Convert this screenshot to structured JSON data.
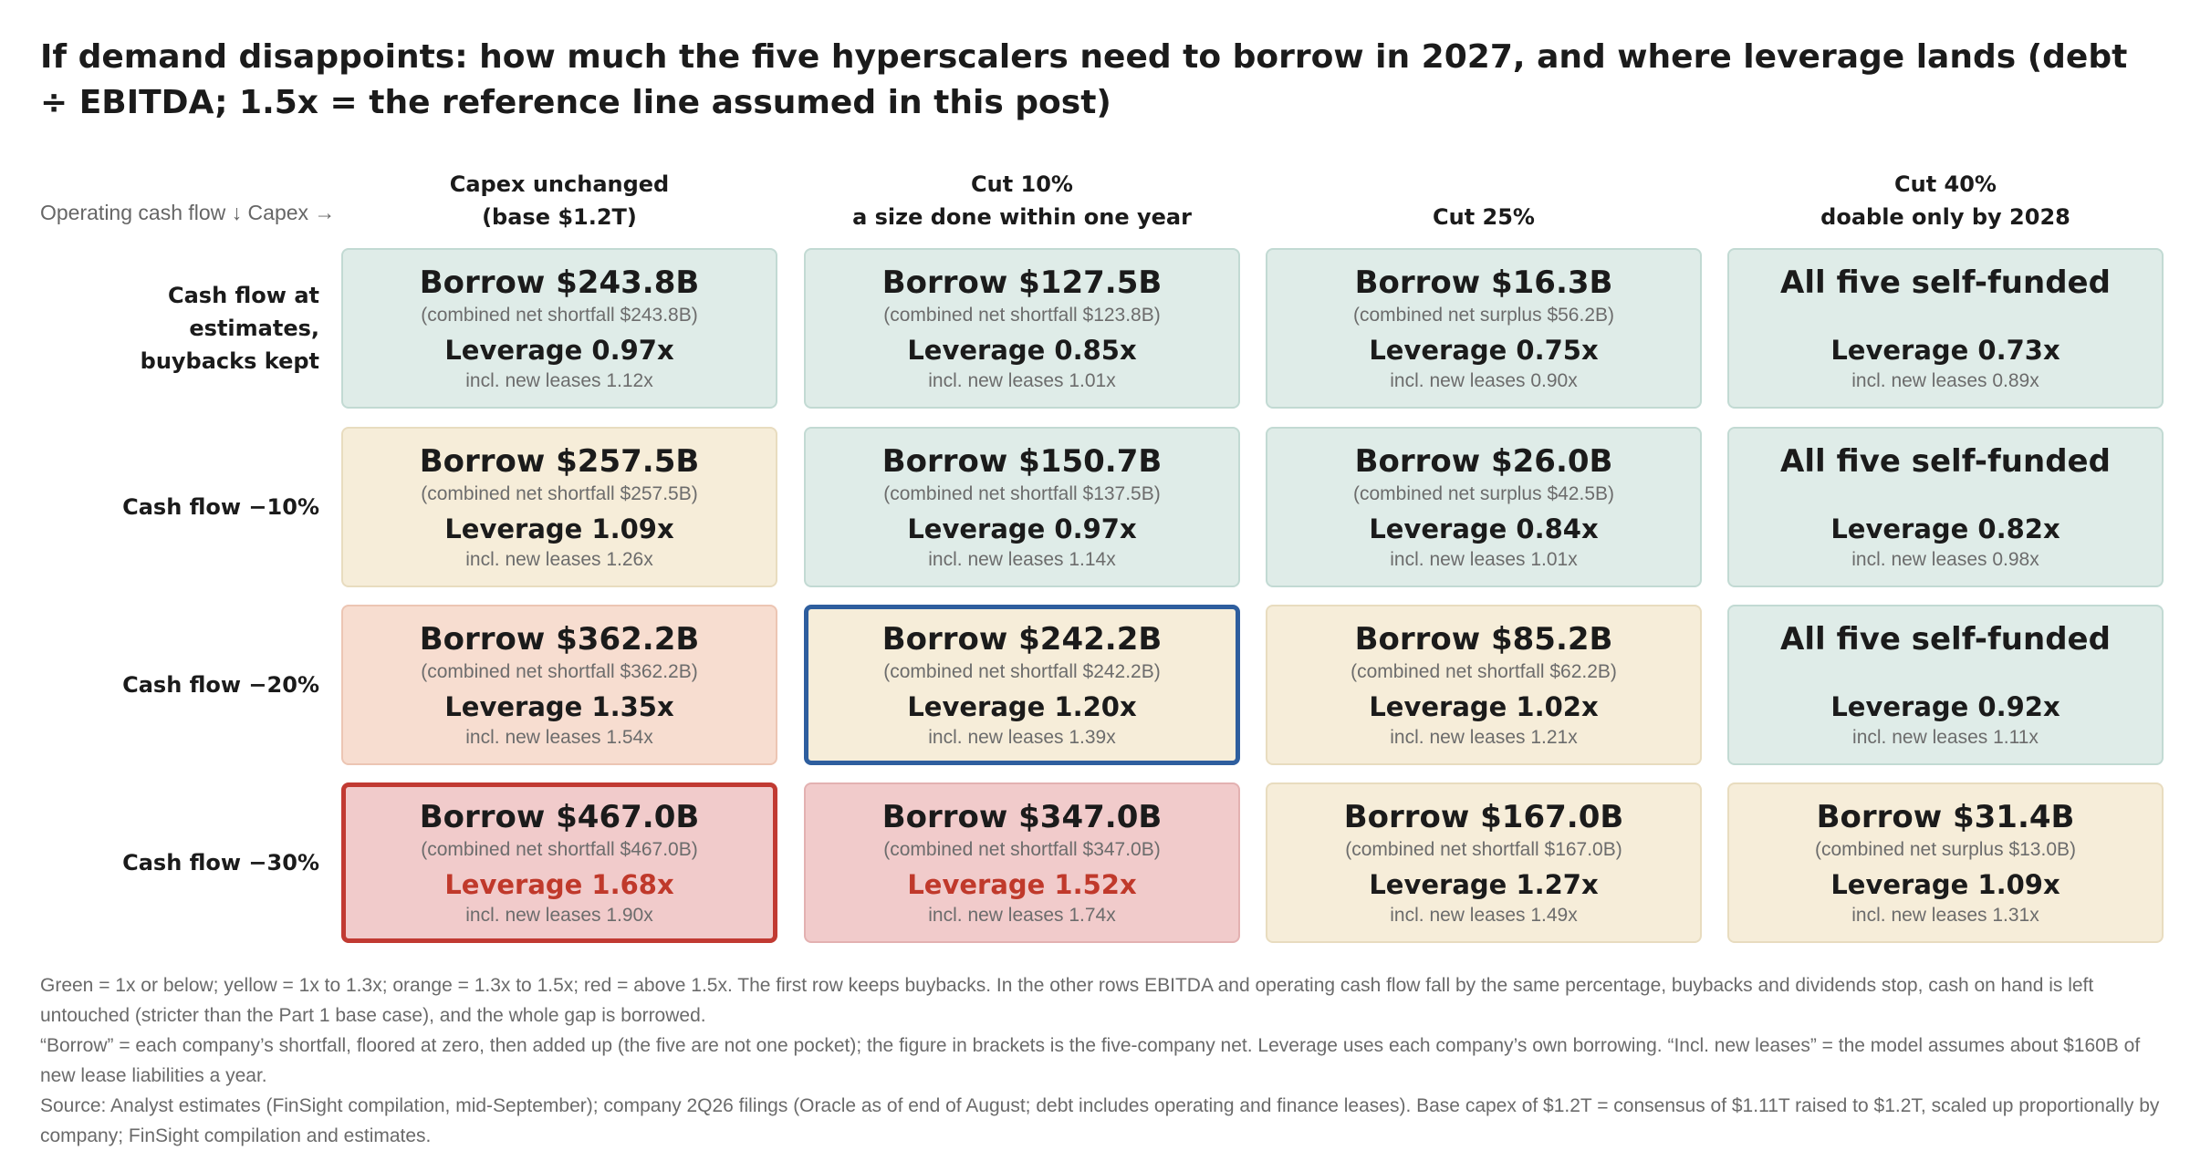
{
  "title": "If demand disappoints: how much the five hyperscalers need to borrow in 2027, and where leverage lands (debt ÷ EBITDA; 1.5x = the reference line assumed in this post)",
  "corner_label": "Operating cash flow ↓   Capex →",
  "chart_data": {
    "type": "table",
    "title": "If demand disappoints: how much the five hyperscalers need to borrow in 2027, and where leverage lands (debt ÷ EBITDA; 1.5x = the reference line assumed in this post)",
    "columns": [
      {
        "line1": "Capex unchanged",
        "line2": "(base $1.2T)"
      },
      {
        "line1": "Cut 10%",
        "line2": "a size done within one year"
      },
      {
        "line1": "",
        "line2": "Cut 25%"
      },
      {
        "line1": "Cut 40%",
        "line2": "doable only by 2028"
      }
    ],
    "rows": [
      {
        "label": "Cash flow at estimates, buybacks kept",
        "label_lines": [
          "Cash flow at",
          "estimates,",
          "buybacks kept"
        ]
      },
      {
        "label": "Cash flow −10%",
        "label_lines": [
          "Cash flow −10%"
        ]
      },
      {
        "label": "Cash flow −20%",
        "label_lines": [
          "Cash flow −20%"
        ]
      },
      {
        "label": "Cash flow −30%",
        "label_lines": [
          "Cash flow −30%"
        ]
      }
    ],
    "reference_leverage": 1.5,
    "color_bands": {
      "green": "#dfece8",
      "yellow": "#f6edd9",
      "orange": "#f7ddd0",
      "red": "#f1cbcb"
    },
    "highlight_colors": {
      "blue": "#2e5e9e",
      "red": "#c13a32"
    },
    "cells": [
      [
        {
          "headline": "Borrow $243.8B",
          "borrow": 243.8,
          "net_text": "(combined net shortfall $243.8B)",
          "leverage_text": "Leverage 0.97x",
          "leverage": 0.97,
          "lease_text": "incl. new leases 1.12x",
          "lease_leverage": 1.12,
          "color": "green",
          "highlight": null
        },
        {
          "headline": "Borrow $127.5B",
          "borrow": 127.5,
          "net_text": "(combined net shortfall $123.8B)",
          "leverage_text": "Leverage 0.85x",
          "leverage": 0.85,
          "lease_text": "incl. new leases 1.01x",
          "lease_leverage": 1.01,
          "color": "green",
          "highlight": null
        },
        {
          "headline": "Borrow $16.3B",
          "borrow": 16.3,
          "net_text": "(combined net surplus $56.2B)",
          "leverage_text": "Leverage 0.75x",
          "leverage": 0.75,
          "lease_text": "incl. new leases 0.90x",
          "lease_leverage": 0.9,
          "color": "green",
          "highlight": null
        },
        {
          "headline": "All five self-funded",
          "borrow": 0,
          "net_text": "",
          "leverage_text": "Leverage 0.73x",
          "leverage": 0.73,
          "lease_text": "incl. new leases 0.89x",
          "lease_leverage": 0.89,
          "color": "green",
          "highlight": null
        }
      ],
      [
        {
          "headline": "Borrow $257.5B",
          "borrow": 257.5,
          "net_text": "(combined net shortfall $257.5B)",
          "leverage_text": "Leverage 1.09x",
          "leverage": 1.09,
          "lease_text": "incl. new leases 1.26x",
          "lease_leverage": 1.26,
          "color": "yellow",
          "highlight": null
        },
        {
          "headline": "Borrow $150.7B",
          "borrow": 150.7,
          "net_text": "(combined net shortfall $137.5B)",
          "leverage_text": "Leverage 0.97x",
          "leverage": 0.97,
          "lease_text": "incl. new leases 1.14x",
          "lease_leverage": 1.14,
          "color": "green",
          "highlight": null
        },
        {
          "headline": "Borrow $26.0B",
          "borrow": 26.0,
          "net_text": "(combined net surplus $42.5B)",
          "leverage_text": "Leverage 0.84x",
          "leverage": 0.84,
          "lease_text": "incl. new leases 1.01x",
          "lease_leverage": 1.01,
          "color": "green",
          "highlight": null
        },
        {
          "headline": "All five self-funded",
          "borrow": 0,
          "net_text": "",
          "leverage_text": "Leverage 0.82x",
          "leverage": 0.82,
          "lease_text": "incl. new leases 0.98x",
          "lease_leverage": 0.98,
          "color": "green",
          "highlight": null
        }
      ],
      [
        {
          "headline": "Borrow $362.2B",
          "borrow": 362.2,
          "net_text": "(combined net shortfall $362.2B)",
          "leverage_text": "Leverage 1.35x",
          "leverage": 1.35,
          "lease_text": "incl. new leases 1.54x",
          "lease_leverage": 1.54,
          "color": "orange",
          "highlight": null
        },
        {
          "headline": "Borrow $242.2B",
          "borrow": 242.2,
          "net_text": "(combined net shortfall $242.2B)",
          "leverage_text": "Leverage 1.20x",
          "leverage": 1.2,
          "lease_text": "incl. new leases 1.39x",
          "lease_leverage": 1.39,
          "color": "yellow",
          "highlight": "blue"
        },
        {
          "headline": "Borrow $85.2B",
          "borrow": 85.2,
          "net_text": "(combined net shortfall $62.2B)",
          "leverage_text": "Leverage 1.02x",
          "leverage": 1.02,
          "lease_text": "incl. new leases 1.21x",
          "lease_leverage": 1.21,
          "color": "yellow",
          "highlight": null
        },
        {
          "headline": "All five self-funded",
          "borrow": 0,
          "net_text": "",
          "leverage_text": "Leverage 0.92x",
          "leverage": 0.92,
          "lease_text": "incl. new leases 1.11x",
          "lease_leverage": 1.11,
          "color": "green",
          "highlight": null
        }
      ],
      [
        {
          "headline": "Borrow $467.0B",
          "borrow": 467.0,
          "net_text": "(combined net shortfall $467.0B)",
          "leverage_text": "Leverage 1.68x",
          "leverage": 1.68,
          "lease_text": "incl. new leases 1.90x",
          "lease_leverage": 1.9,
          "color": "red",
          "highlight": "red"
        },
        {
          "headline": "Borrow $347.0B",
          "borrow": 347.0,
          "net_text": "(combined net shortfall $347.0B)",
          "leverage_text": "Leverage 1.52x",
          "leverage": 1.52,
          "lease_text": "incl. new leases 1.74x",
          "lease_leverage": 1.74,
          "color": "red",
          "highlight": null
        },
        {
          "headline": "Borrow $167.0B",
          "borrow": 167.0,
          "net_text": "(combined net shortfall $167.0B)",
          "leverage_text": "Leverage 1.27x",
          "leverage": 1.27,
          "lease_text": "incl. new leases 1.49x",
          "lease_leverage": 1.49,
          "color": "yellow",
          "highlight": null
        },
        {
          "headline": "Borrow $31.4B",
          "borrow": 31.4,
          "net_text": "(combined net surplus $13.0B)",
          "leverage_text": "Leverage 1.09x",
          "leverage": 1.09,
          "lease_text": "incl. new leases 1.31x",
          "lease_leverage": 1.31,
          "color": "yellow",
          "highlight": null
        }
      ]
    ]
  },
  "notes": [
    "Green = 1x or below; yellow = 1x to 1.3x; orange = 1.3x to 1.5x; red = above 1.5x. The first row keeps buybacks. In the other rows EBITDA and operating cash flow fall by the same percentage, buybacks and dividends stop, cash on hand is left untouched (stricter than the Part 1 base case), and the whole gap is borrowed.",
    "“Borrow” = each company’s shortfall, floored at zero, then added up (the five are not one pocket); the figure in brackets is the five-company net. Leverage uses each company’s own borrowing. “Incl. new leases” = the model assumes about $160B of new lease liabilities a year.",
    "Source: Analyst estimates (FinSight compilation, mid-September); company 2Q26 filings (Oracle as of end of August; debt includes operating and finance leases). Base capex of $1.2T = consensus of $1.11T raised to $1.2T, scaled up proportionally by company; FinSight compilation and estimates."
  ]
}
